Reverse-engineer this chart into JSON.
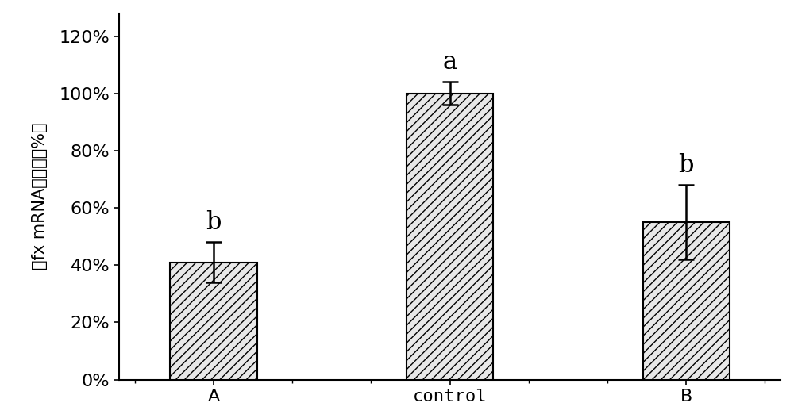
{
  "categories": [
    "A",
    "control",
    "B"
  ],
  "values": [
    0.41,
    1.0,
    0.55
  ],
  "errors": [
    0.07,
    0.04,
    0.13
  ],
  "sig_labels": [
    "b",
    "a",
    "b"
  ],
  "bar_color": "#e8e8e8",
  "bar_edgecolor": "#000000",
  "hatch": "///",
  "ylabel": "猪fx mRNA表达量（%）",
  "ylim": [
    0,
    1.28
  ],
  "yticks": [
    0,
    0.2,
    0.4,
    0.6,
    0.8,
    1.0,
    1.2
  ],
  "ytick_labels": [
    "0%",
    "20%",
    "40%",
    "60%",
    "80%",
    "100%",
    "120%"
  ],
  "bar_width": 0.55,
  "bar_positions": [
    0.5,
    2.0,
    3.5
  ],
  "xlim": [
    -0.1,
    4.1
  ],
  "fig_width": 10.0,
  "fig_height": 5.27,
  "sig_fontsize": 22,
  "ylabel_fontsize": 15,
  "tick_fontsize": 16,
  "xlabel_fontsize": 16,
  "background_color": "#ffffff",
  "capsize": 7,
  "error_linewidth": 1.8
}
